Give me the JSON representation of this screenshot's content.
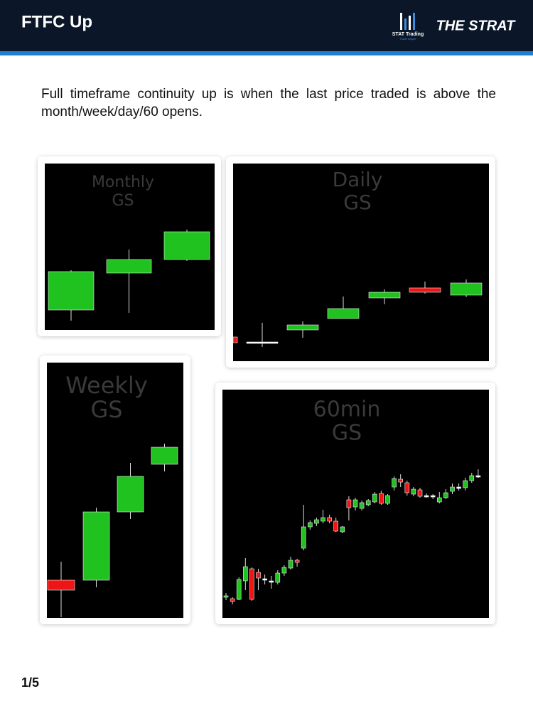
{
  "header": {
    "title": "FTFC Up",
    "logo_left": {
      "name": "STAT Trading",
      "tagline": "Trade simple"
    },
    "logo_right": "THE STRAT"
  },
  "body": {
    "text": "Full timeframe continuity up is when the last price traded is above the month/week/day/60 opens."
  },
  "charts": [
    {
      "timeframe": "Monthly",
      "ticker": "GS"
    },
    {
      "timeframe": "Daily",
      "ticker": "GS"
    },
    {
      "timeframe": "Weekly",
      "ticker": "GS"
    },
    {
      "timeframe": "60min",
      "ticker": "GS"
    }
  ],
  "footer": {
    "page": "1/5"
  }
}
